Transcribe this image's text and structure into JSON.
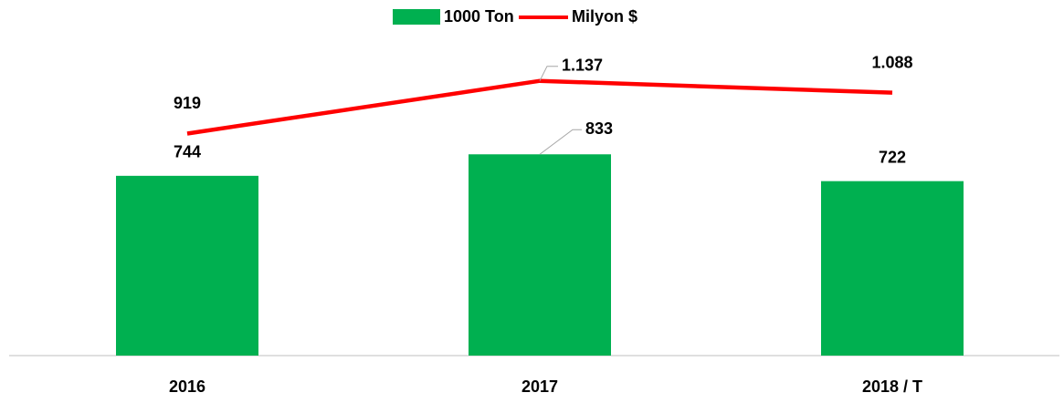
{
  "chart_data": {
    "type": "bar-line",
    "categories": [
      "2016",
      "2017",
      "2018 / T"
    ],
    "series": [
      {
        "name": "1000 Ton",
        "type": "bar",
        "color": "#00b050",
        "values": [
          744,
          833,
          722
        ]
      },
      {
        "name": "Milyon $",
        "type": "line",
        "color": "#ff0000",
        "values": [
          919,
          1137,
          1088
        ],
        "value_labels": [
          "919",
          "1.137",
          "1.088"
        ]
      }
    ],
    "ylim": [
      0,
      1400
    ],
    "legend": "top"
  }
}
